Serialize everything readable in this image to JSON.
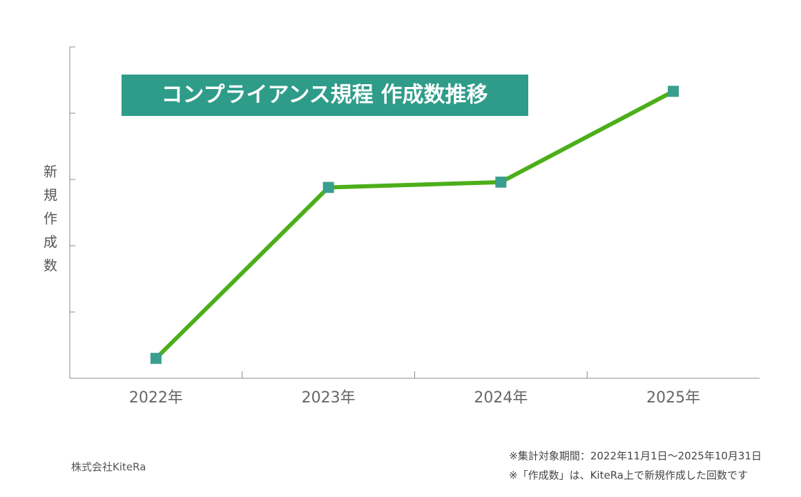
{
  "chart_data": {
    "type": "line",
    "title": "コンプライアンス規程 作成数推移",
    "y_label": "新規作成数",
    "categories": [
      "2022年",
      "2023年",
      "2024年",
      "2025年"
    ],
    "values": [
      0.3,
      2.88,
      2.96,
      4.33
    ],
    "color": "#4caf1a",
    "marker_color": "#3a9e8e",
    "ylim": [
      0,
      5
    ],
    "yticks": [
      0,
      1,
      2,
      3,
      4,
      5
    ],
    "source": "株式会社KiteRa",
    "notes": [
      "※集計対象期間：2022年11月1日〜2025年10月31日",
      "※「作成数」は、KiteRa上で新規作成した回数です"
    ]
  }
}
